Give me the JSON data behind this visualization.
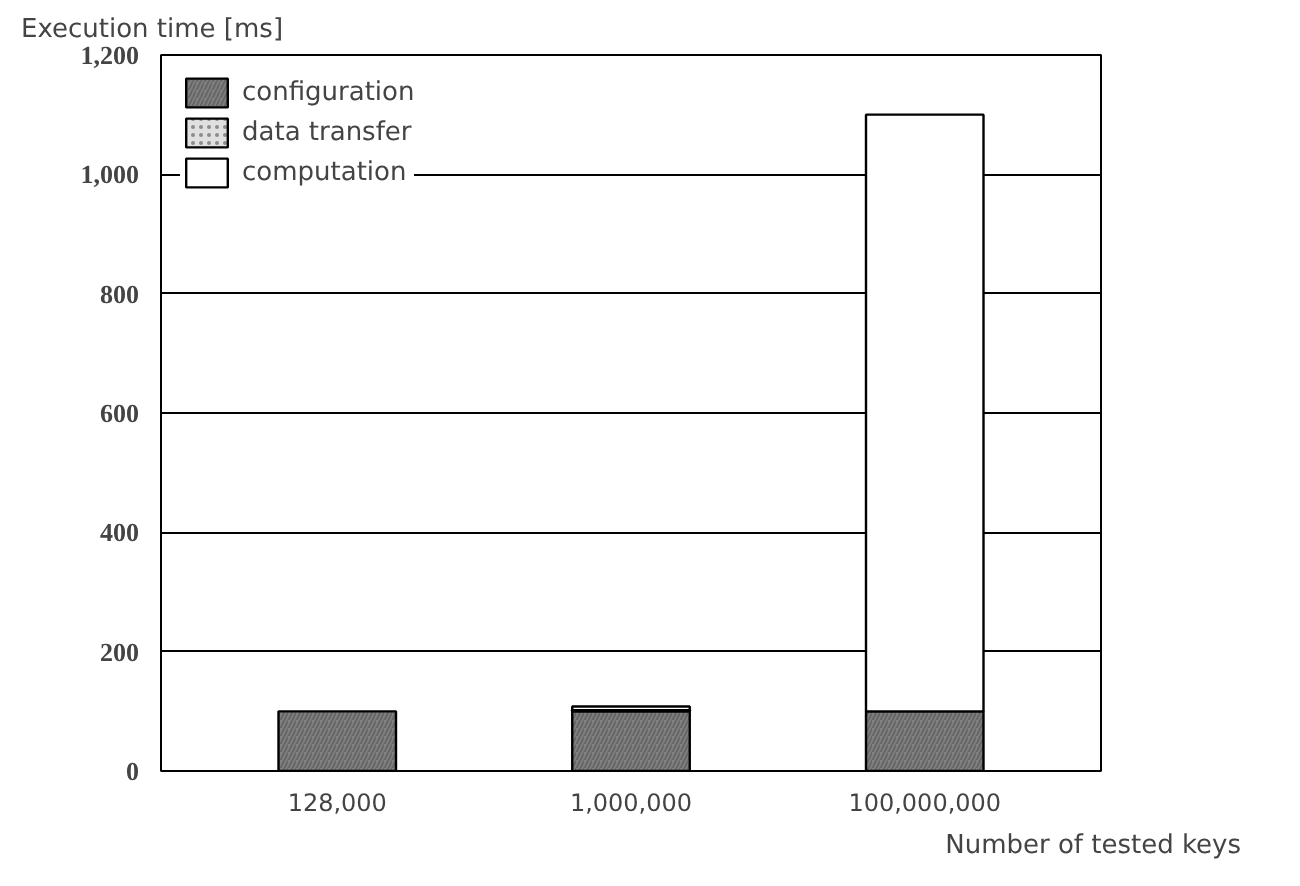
{
  "chart_data": {
    "type": "bar",
    "stacked": true,
    "xlabel": "Number of tested keys",
    "ylabel": "Execution time [ms]",
    "categories": [
      "128,000",
      "1,000,000",
      "100,000,000"
    ],
    "series": [
      {
        "name": "configuration",
        "color": "#808080",
        "values": [
          100,
          100,
          100
        ]
      },
      {
        "name": "data transfer",
        "color": "#e0e0e0",
        "values": [
          null,
          2,
          null
        ]
      },
      {
        "name": "computation",
        "color": "#ffffff",
        "values": [
          null,
          6,
          1000
        ]
      }
    ],
    "ylim": [
      0,
      1200
    ],
    "yticks": [
      0,
      200,
      400,
      600,
      800,
      {
        "value": 1000,
        "label": "1,000"
      },
      {
        "value": 1200,
        "label": "1,200"
      }
    ],
    "grid": "y",
    "legend": "top left"
  }
}
